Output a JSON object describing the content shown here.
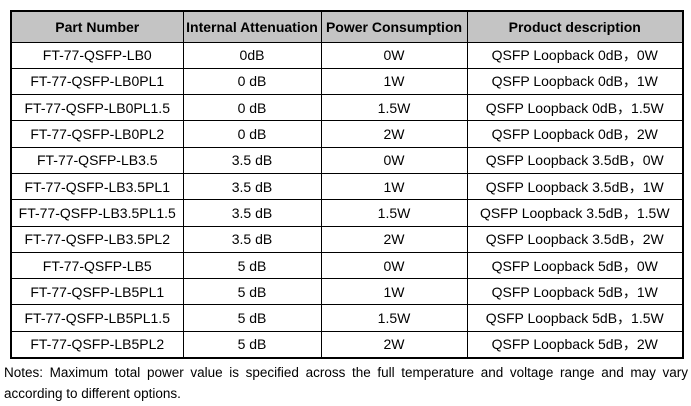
{
  "table": {
    "columns": [
      "Part Number",
      "Internal Attenuation",
      "Power Consumption",
      "Product description"
    ],
    "rows": [
      [
        "FT-77-QSFP-LB0",
        "0dB",
        "0W",
        "QSFP Loopback 0dB，0W"
      ],
      [
        "FT-77-QSFP-LB0PL1",
        "0 dB",
        "1W",
        "QSFP Loopback 0dB，1W"
      ],
      [
        "FT-77-QSFP-LB0PL1.5",
        "0 dB",
        "1.5W",
        "QSFP Loopback 0dB，1.5W"
      ],
      [
        "FT-77-QSFP-LB0PL2",
        "0 dB",
        "2W",
        "QSFP Loopback 0dB，2W"
      ],
      [
        "FT-77-QSFP-LB3.5",
        "3.5 dB",
        "0W",
        "QSFP Loopback 3.5dB，0W"
      ],
      [
        "FT-77-QSFP-LB3.5PL1",
        "3.5 dB",
        "1W",
        "QSFP Loopback 3.5dB，1W"
      ],
      [
        "FT-77-QSFP-LB3.5PL1.5",
        "3.5 dB",
        "1.5W",
        "QSFP Loopback 3.5dB，1.5W"
      ],
      [
        "FT-77-QSFP-LB3.5PL2",
        "3.5 dB",
        "2W",
        "QSFP Loopback 3.5dB，2W"
      ],
      [
        "FT-77-QSFP-LB5",
        "5 dB",
        "0W",
        "QSFP Loopback 5dB，0W"
      ],
      [
        "FT-77-QSFP-LB5PL1",
        "5 dB",
        "1W",
        "QSFP Loopback 5dB，1W"
      ],
      [
        "FT-77-QSFP-LB5PL1.5",
        "5 dB",
        "1.5W",
        "QSFP Loopback 5dB，1.5W"
      ],
      [
        "FT-77-QSFP-LB5PL2",
        "5 dB",
        "2W",
        "QSFP Loopback 5dB，2W"
      ]
    ]
  },
  "notes": "Notes: Maximum total power value is specified across the full temperature and voltage range and may vary according to different options."
}
